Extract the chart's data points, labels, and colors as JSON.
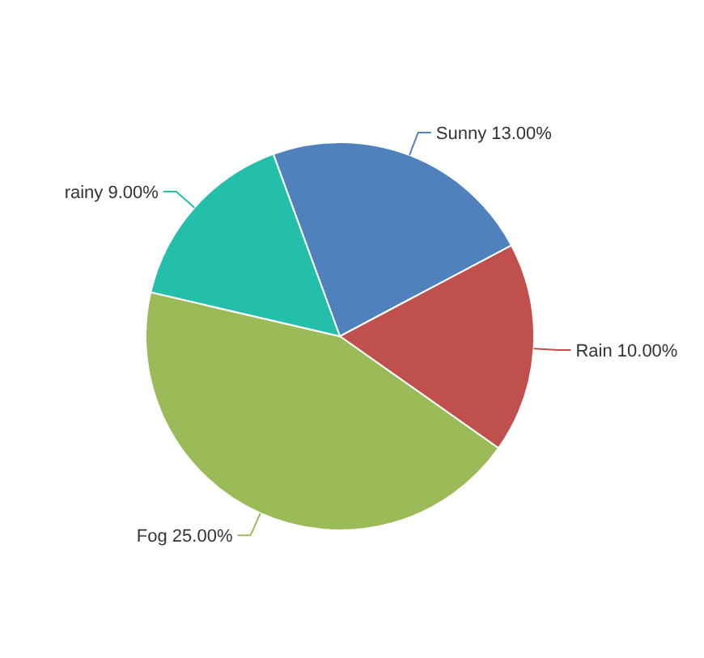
{
  "chart_data": {
    "type": "pie",
    "categories": [
      "Sunny",
      "Rain",
      "Fog",
      "rainy"
    ],
    "values": [
      13,
      10,
      25,
      9
    ],
    "value_labels": [
      "13.00%",
      "10.00%",
      "25.00%",
      "9.00%"
    ],
    "colors": [
      "#4f81bd",
      "#c0504d",
      "#9bbb59",
      "#23bfaa"
    ]
  }
}
